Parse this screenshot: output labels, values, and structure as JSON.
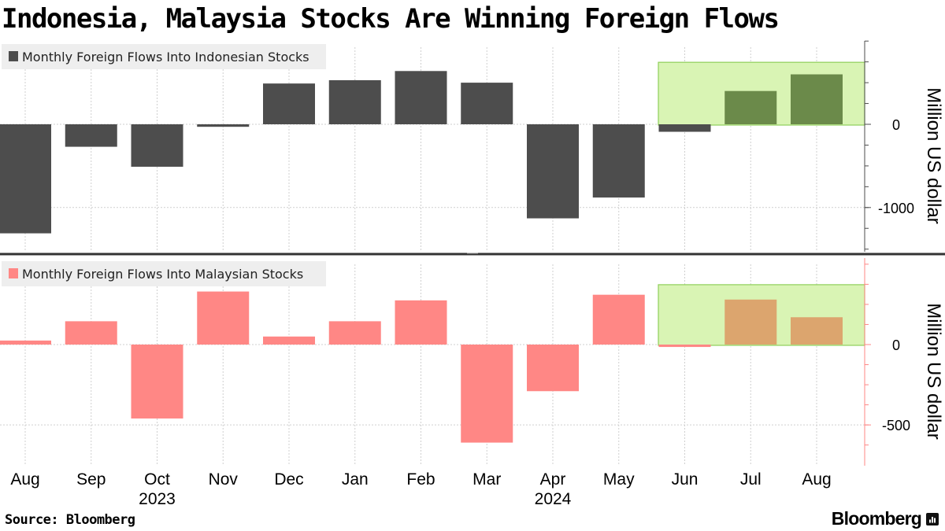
{
  "title": "Indonesia, Malaysia Stocks Are Winning Foreign Flows",
  "source": "Source: Bloomberg",
  "brand": "Bloomberg",
  "chart_data": [
    {
      "type": "bar",
      "legend": "Monthly Foreign Flows Into Indonesian Stocks",
      "ylabel": "Million US dollar",
      "categories": [
        "Aug",
        "Sep",
        "Oct",
        "Nov",
        "Dec",
        "Jan",
        "Feb",
        "Mar",
        "Apr",
        "May",
        "Jun",
        "Jul",
        "Aug"
      ],
      "values": [
        -1310,
        -270,
        -510,
        -30,
        490,
        530,
        640,
        500,
        -1130,
        -880,
        -90,
        400,
        600
      ],
      "highlight_categories": [
        "Jun",
        "Jul",
        "Aug"
      ],
      "yticks": [
        0,
        -1000
      ],
      "ylim": [
        -1540,
        1000
      ],
      "color": "#4d4d4d",
      "highlight_bar_color": "#6b8a4a",
      "legend_placement": "top-left",
      "grid": true
    },
    {
      "type": "bar",
      "legend": "Monthly Foreign Flows Into Malaysian Stocks",
      "ylabel": "Million US dollar",
      "categories": [
        "Aug",
        "Sep",
        "Oct",
        "Nov",
        "Dec",
        "Jan",
        "Feb",
        "Mar",
        "Apr",
        "May",
        "Jun",
        "Jul",
        "Aug"
      ],
      "values": [
        25,
        145,
        -460,
        330,
        50,
        145,
        275,
        -610,
        -290,
        310,
        -15,
        280,
        170
      ],
      "highlight_categories": [
        "Jun",
        "Jul",
        "Aug"
      ],
      "yticks": [
        0,
        -500
      ],
      "ylim": [
        -705,
        500
      ],
      "color": "#ff8785",
      "highlight_bar_color": "#dca56e",
      "legend_placement": "top-left",
      "grid": true
    }
  ],
  "x_axis": {
    "labels": [
      "Aug",
      "Sep",
      "Oct",
      "Nov",
      "Dec",
      "Jan",
      "Feb",
      "Mar",
      "Apr",
      "May",
      "Jun",
      "Jul",
      "Aug"
    ],
    "year_labels": [
      {
        "text": "2023",
        "category_index": 2
      },
      {
        "text": "2024",
        "category_index": 8
      }
    ]
  },
  "colors": {
    "highlight_fill": "#d9f4b4",
    "highlight_stroke": "#8fcf5a",
    "legend_bg": "#eeeeee",
    "divider": "#333333",
    "axis_top": "#4d4d4d",
    "axis_bottom": "#ff8785"
  }
}
